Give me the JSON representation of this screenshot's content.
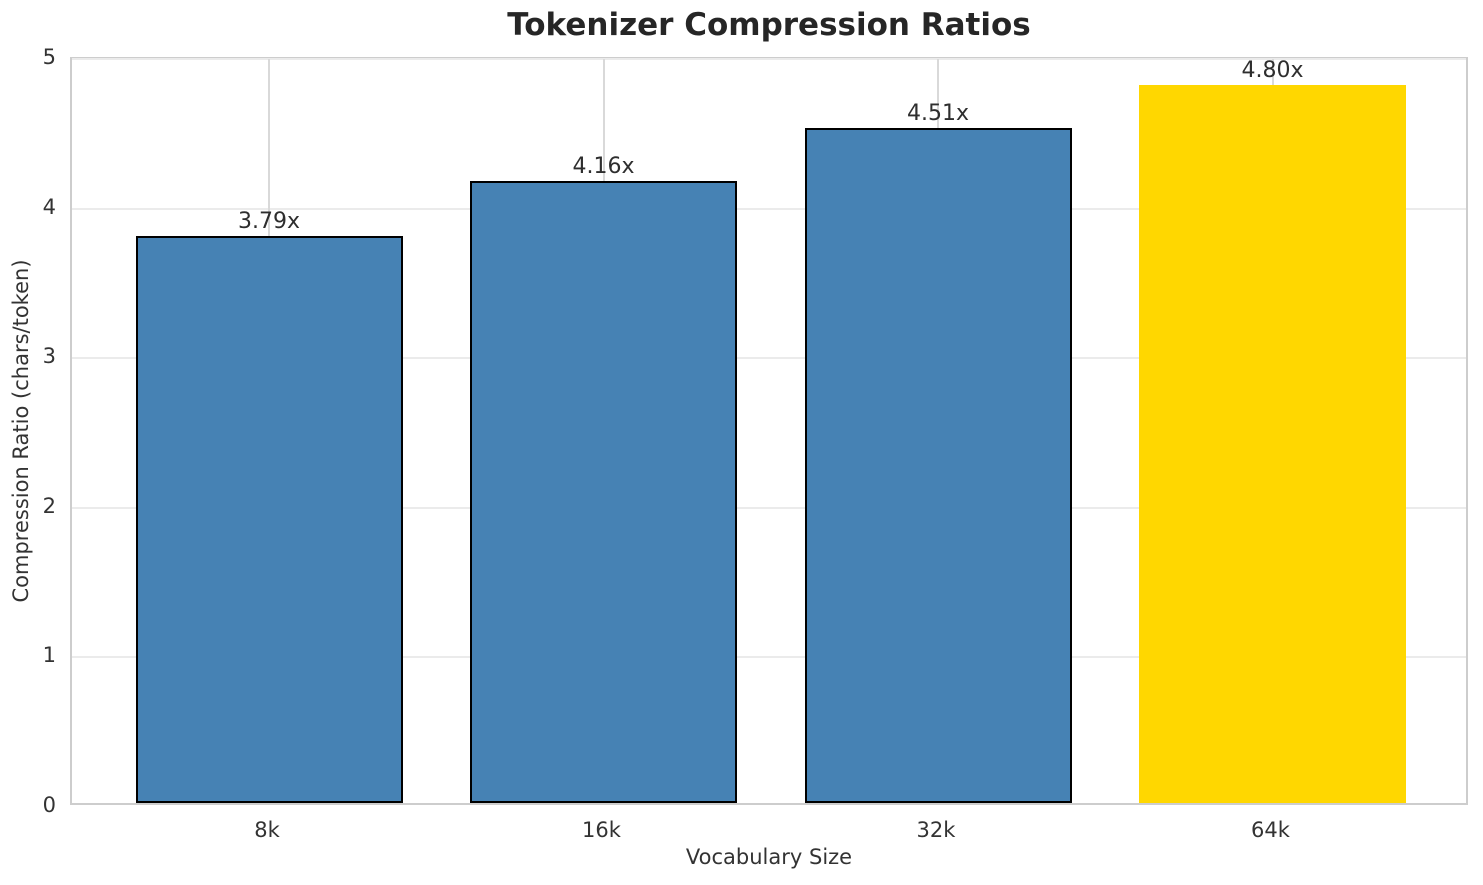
{
  "figure": {
    "title": "Tokenizer Compression Ratios",
    "xlabel": "Vocabulary Size",
    "ylabel": "Compression Ratio (chars/token)"
  },
  "chart_data": {
    "type": "bar",
    "title": "Tokenizer Compression Ratios",
    "xlabel": "Vocabulary Size",
    "ylabel": "Compression Ratio (chars/token)",
    "categories": [
      "8k",
      "16k",
      "32k",
      "64k"
    ],
    "values": [
      3.79,
      4.16,
      4.51,
      4.8
    ],
    "value_labels": [
      "3.79x",
      "4.16x",
      "4.51x",
      "4.80x"
    ],
    "bar_colors": [
      "#4682B4",
      "#4682B4",
      "#4682B4",
      "#FFD700"
    ],
    "bar_edge_colors": [
      "#000000",
      "#000000",
      "#000000",
      "none"
    ],
    "highlighted_category": "64k",
    "ylim": [
      0,
      5
    ],
    "yticks": [
      0,
      1,
      2,
      3,
      4,
      5
    ],
    "grid": true,
    "legend_position": "none",
    "colors": {
      "grid_horizontal": "#ebebeb",
      "grid_vertical": "#d9d9d9",
      "spine": "#cdcdcd",
      "tick_text": "#333333",
      "title_text": "#262626",
      "bar_default": "#4682B4",
      "bar_highlight": "#FFD700",
      "bar_edge": "#000000"
    }
  }
}
